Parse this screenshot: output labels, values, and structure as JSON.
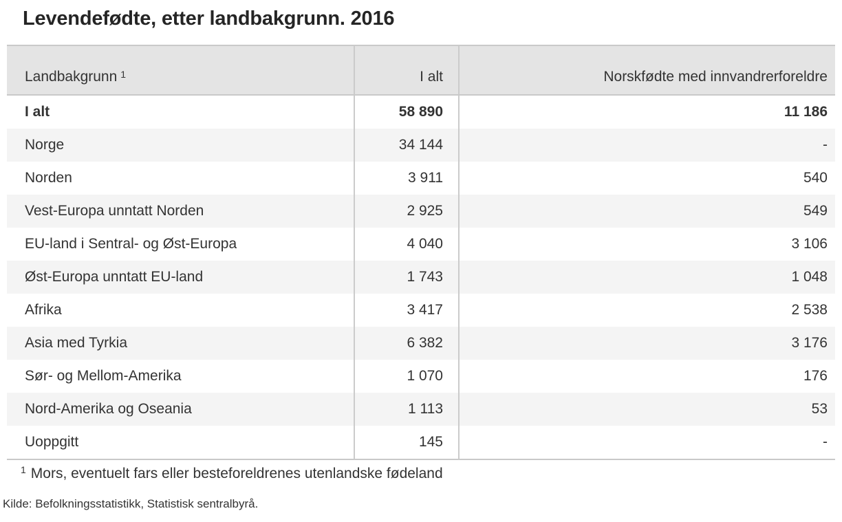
{
  "title": "Levendefødte, etter landbakgrunn. 2016",
  "table": {
    "header": {
      "landbakgrunn": "Landbakgrunn",
      "landbakgrunn_footnote_marker": "1",
      "i_alt": "I alt",
      "norskfodte": "Norskfødte med innvandrerforeldre"
    },
    "rows": [
      {
        "label": "I alt",
        "i_alt": "58 890",
        "norskfodte": "11 186",
        "bold": true
      },
      {
        "label": "Norge",
        "i_alt": "34 144",
        "norskfodte": "-",
        "bold": false
      },
      {
        "label": "Norden",
        "i_alt": "3 911",
        "norskfodte": "540",
        "bold": false
      },
      {
        "label": "Vest-Europa unntatt Norden",
        "i_alt": "2 925",
        "norskfodte": "549",
        "bold": false
      },
      {
        "label": "EU-land i Sentral- og Øst-Europa",
        "i_alt": "4 040",
        "norskfodte": "3 106",
        "bold": false
      },
      {
        "label": "Øst-Europa unntatt EU-land",
        "i_alt": "1 743",
        "norskfodte": "1 048",
        "bold": false
      },
      {
        "label": "Afrika",
        "i_alt": "3 417",
        "norskfodte": "2 538",
        "bold": false
      },
      {
        "label": "Asia med Tyrkia",
        "i_alt": "6 382",
        "norskfodte": "3 176",
        "bold": false
      },
      {
        "label": "Sør- og Mellom-Amerika",
        "i_alt": "1 070",
        "norskfodte": "176",
        "bold": false
      },
      {
        "label": "Nord-Amerika og Oseania",
        "i_alt": "1 113",
        "norskfodte": "53",
        "bold": false
      },
      {
        "label": "Uoppgitt",
        "i_alt": "145",
        "norskfodte": "-",
        "bold": false
      }
    ]
  },
  "footnote": {
    "marker": "1",
    "text": "Mors, eventuelt fars eller besteforeldrenes utenlandske fødeland"
  },
  "source": "Kilde: Befolkningsstatistikk, Statistisk sentralbyrå.",
  "colors": {
    "header_background": "#e4e4e4",
    "stripe_background": "#f4f4f4",
    "border": "#c9c9c9",
    "column_separator": "#cbcbcb",
    "text": "#333333",
    "title_text": "#252525"
  },
  "chart_data": {
    "type": "table",
    "title": "Levendefødte, etter landbakgrunn. 2016",
    "columns": [
      "Landbakgrunn",
      "I alt",
      "Norskfødte med innvandrerforeldre"
    ],
    "rows": [
      [
        "I alt",
        58890,
        11186
      ],
      [
        "Norge",
        34144,
        null
      ],
      [
        "Norden",
        3911,
        540
      ],
      [
        "Vest-Europa unntatt Norden",
        2925,
        549
      ],
      [
        "EU-land i Sentral- og Øst-Europa",
        4040,
        3106
      ],
      [
        "Øst-Europa unntatt EU-land",
        1743,
        1048
      ],
      [
        "Afrika",
        3417,
        2538
      ],
      [
        "Asia med Tyrkia",
        6382,
        3176
      ],
      [
        "Sør- og Mellom-Amerika",
        1070,
        176
      ],
      [
        "Nord-Amerika og Oseania",
        1113,
        53
      ],
      [
        "Uoppgitt",
        145,
        null
      ]
    ],
    "missing_value_symbol": "-",
    "footnote": "1 Mors, eventuelt fars eller besteforeldrenes utenlandske fødeland",
    "source": "Kilde: Befolkningsstatistikk, Statistisk sentralbyrå.",
    "layout": {
      "striped": true,
      "bold_total_row": true,
      "number_alignment": "right"
    }
  }
}
